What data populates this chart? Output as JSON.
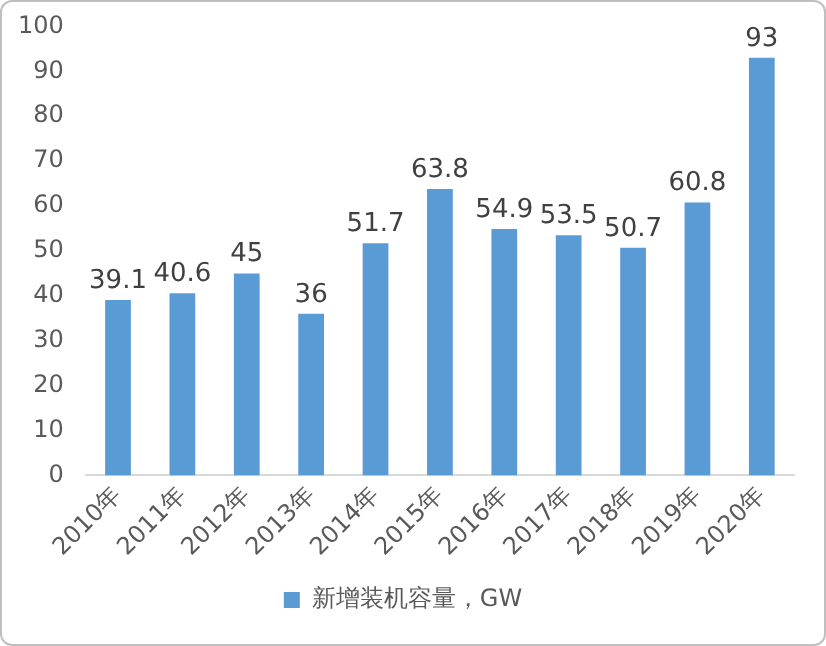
{
  "chart_data": {
    "type": "bar",
    "categories": [
      "2010年",
      "2011年",
      "2012年",
      "2013年",
      "2014年",
      "2015年",
      "2016年",
      "2017年",
      "2018年",
      "2019年",
      "2020年"
    ],
    "series": [
      {
        "name": "新增装机容量，GW",
        "color": "#5b9bd5",
        "values": [
          39.1,
          40.6,
          45,
          36,
          51.7,
          63.8,
          54.9,
          53.5,
          50.7,
          60.8,
          93
        ]
      }
    ],
    "ylim": [
      0,
      100
    ],
    "yticks": [
      0,
      10,
      20,
      30,
      40,
      50,
      60,
      70,
      80,
      90,
      100
    ],
    "grid": false,
    "legend": "bottom",
    "data_labels": true
  }
}
